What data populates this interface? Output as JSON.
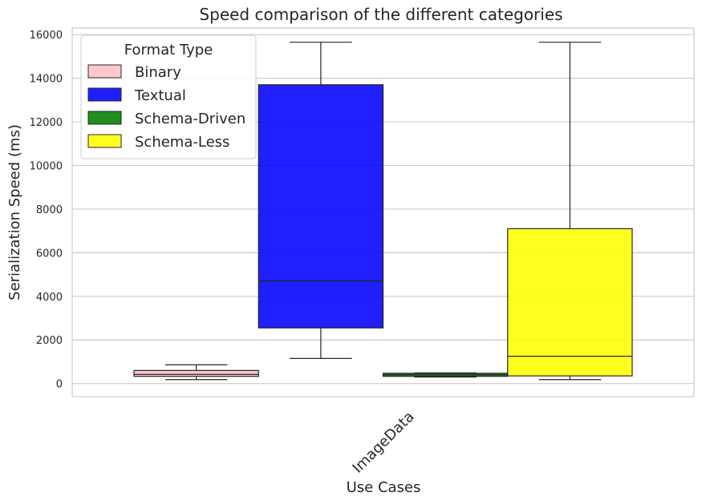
{
  "chart_data": {
    "type": "box",
    "title": "Speed comparison of the different categories",
    "xlabel": "Use Cases",
    "ylabel": "Serialization Speed (ms)",
    "categories": [
      "ImageData"
    ],
    "ylim": [
      -600,
      16300
    ],
    "yticks": [
      0,
      2000,
      4000,
      6000,
      8000,
      10000,
      12000,
      14000,
      16000
    ],
    "grid": true,
    "legend": {
      "title": "Format Type",
      "placement": "top-left"
    },
    "series": [
      {
        "name": "Binary",
        "color": "#ffc0cb",
        "min": 180,
        "q1": 330,
        "median": 420,
        "q3": 600,
        "max": 860
      },
      {
        "name": "Textual",
        "color": "#0000ff",
        "min": 1150,
        "q1": 2550,
        "median": 4700,
        "q3": 13700,
        "max": 15650
      },
      {
        "name": "Schema-Driven",
        "color": "#008000",
        "min": 300,
        "q1": 330,
        "median": 400,
        "q3": 470,
        "max": 490
      },
      {
        "name": "Schema-Less",
        "color": "#ffff00",
        "min": 180,
        "q1": 350,
        "median": 1250,
        "q3": 7100,
        "max": 15650
      }
    ]
  }
}
